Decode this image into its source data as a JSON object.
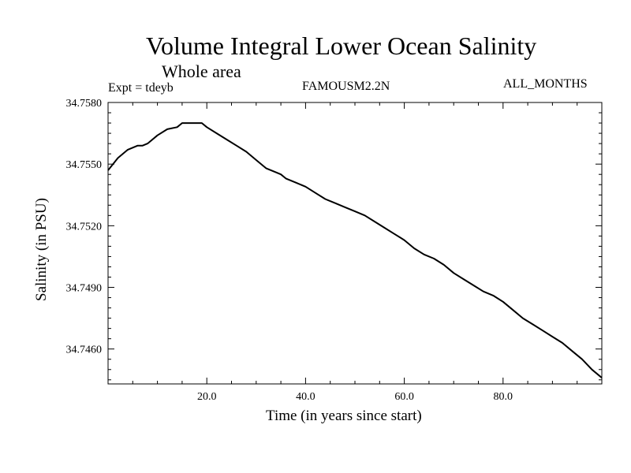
{
  "header": {
    "title": "Volume Integral Lower Ocean Salinity",
    "subtitle": "Whole area",
    "expt": "Expt = tdeyb",
    "model": "FAMOUSM2.2N",
    "months": "ALL_MONTHS"
  },
  "chart_data": {
    "type": "line",
    "title": "Volume Integral Lower Ocean Salinity",
    "subtitle": "Whole area",
    "xlabel": "Time (in years since start)",
    "ylabel": "Salinity (in PSU)",
    "xlim": [
      0,
      100
    ],
    "ylim": [
      34.7443,
      34.758
    ],
    "xticks": [
      20,
      40,
      60,
      80
    ],
    "xtick_labels": [
      "20.0",
      "40.0",
      "60.0",
      "80.0"
    ],
    "yticks": [
      34.758,
      34.755,
      34.752,
      34.749,
      34.746
    ],
    "ytick_labels": [
      "34.7580",
      "34.7550",
      "34.7520",
      "34.7490",
      "34.7460"
    ],
    "grid": false,
    "series": [
      {
        "color": "#000000",
        "x": [
          0,
          2,
          4,
          6,
          7,
          8,
          10,
          12,
          14,
          15,
          16,
          18,
          19,
          20,
          22,
          24,
          26,
          28,
          30,
          32,
          34,
          35,
          36,
          38,
          40,
          42,
          44,
          46,
          48,
          50,
          52,
          54,
          56,
          58,
          60,
          62,
          64,
          66,
          68,
          70,
          72,
          74,
          76,
          78,
          80,
          82,
          84,
          86,
          88,
          90,
          92,
          94,
          96,
          98,
          100
        ],
        "y": [
          34.7547,
          34.7553,
          34.7557,
          34.7559,
          34.7559,
          34.756,
          34.7564,
          34.7567,
          34.7568,
          34.757,
          34.757,
          34.757,
          34.757,
          34.7568,
          34.7565,
          34.7562,
          34.7559,
          34.7556,
          34.7552,
          34.7548,
          34.7546,
          34.7545,
          34.7543,
          34.7541,
          34.7539,
          34.7536,
          34.7533,
          34.7531,
          34.7529,
          34.7527,
          34.7525,
          34.7522,
          34.7519,
          34.7516,
          34.7513,
          34.7509,
          34.7506,
          34.7504,
          34.7501,
          34.7497,
          34.7494,
          34.7491,
          34.7488,
          34.7486,
          34.7483,
          34.7479,
          34.7475,
          34.7472,
          34.7469,
          34.7466,
          34.7463,
          34.7459,
          34.7455,
          34.745,
          34.7446
        ]
      }
    ]
  }
}
